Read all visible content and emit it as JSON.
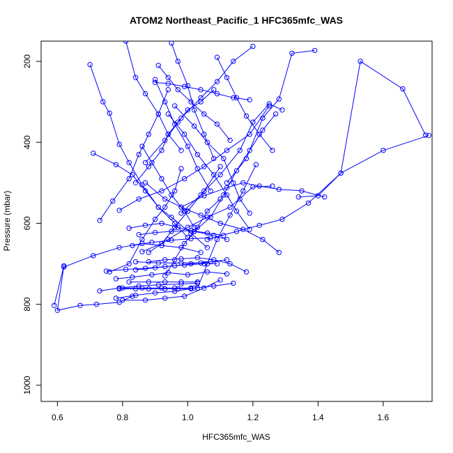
{
  "chart_data": {
    "type": "line",
    "title": "ATOM2 Northeast_Pacific_1 HFC365mfc_WAS",
    "xlabel": "HFC365mfc_WAS",
    "ylabel": "Pressure (mbar)",
    "xlim": [
      0.55,
      1.75
    ],
    "ylim": [
      1040,
      150
    ],
    "y_reversed": true,
    "grid": false,
    "x_ticks": [
      0.6,
      0.8,
      1.0,
      1.2,
      1.4,
      1.6
    ],
    "x_tick_labels": [
      "0.6",
      "0.8",
      "1.0",
      "1.2",
      "1.4",
      "1.6"
    ],
    "y_ticks": [
      200,
      400,
      600,
      800,
      1000
    ],
    "y_tick_labels": [
      "200",
      "400",
      "600",
      "800",
      "1000"
    ],
    "series_color": "#0000ff",
    "series": [
      {
        "x": [
          0.59,
          0.62,
          0.6,
          0.67,
          0.72,
          0.79,
          0.83
        ],
        "y": [
          803,
          705,
          815,
          803,
          800,
          795,
          780
        ]
      },
      {
        "x": [
          0.7,
          0.74,
          0.76,
          0.79,
          0.82,
          0.86,
          0.91,
          0.96,
          1.0
        ],
        "y": [
          208,
          300,
          328,
          405,
          450,
          505,
          560,
          600,
          635
        ]
      },
      {
        "x": [
          0.71,
          0.78,
          0.83,
          0.87,
          0.91,
          0.95,
          1.01,
          1.06
        ],
        "y": [
          427,
          455,
          480,
          520,
          560,
          585,
          625,
          660
        ]
      },
      {
        "x": [
          1.73,
          1.66,
          1.53,
          1.47,
          1.4,
          1.34
        ],
        "y": [
          382,
          268,
          200,
          476,
          532,
          535
        ]
      },
      {
        "x": [
          1.74,
          1.6,
          1.47,
          1.37,
          1.29,
          1.22,
          1.15,
          1.06
        ],
        "y": [
          383,
          420,
          476,
          550,
          590,
          605,
          620,
          640
        ]
      },
      {
        "x": [
          1.39,
          1.32,
          1.28,
          1.23,
          1.18,
          1.12
        ],
        "y": [
          173,
          180,
          293,
          340,
          440,
          500
        ]
      },
      {
        "x": [
          1.42,
          1.35,
          1.28,
          1.22,
          1.17,
          1.12,
          1.05,
          0.98
        ],
        "y": [
          535,
          520,
          516,
          508,
          500,
          512,
          532,
          560
        ]
      },
      {
        "x": [
          0.62,
          0.71,
          0.79,
          0.86,
          0.92,
          0.98,
          1.04
        ],
        "y": [
          708,
          680,
          660,
          650,
          655,
          660,
          672
        ]
      },
      {
        "x": [
          0.73,
          0.77,
          0.82,
          0.85,
          0.88,
          0.91,
          0.94
        ],
        "y": [
          593,
          545,
          490,
          430,
          380,
          330,
          270
        ]
      },
      {
        "x": [
          0.81,
          0.84,
          0.87,
          0.91,
          0.94,
          0.98
        ],
        "y": [
          150,
          240,
          280,
          330,
          380,
          420
        ]
      },
      {
        "x": [
          0.84,
          0.88,
          0.92,
          0.94,
          0.97,
          1.0,
          1.04,
          1.08
        ],
        "y": [
          500,
          460,
          420,
          380,
          350,
          320,
          300,
          270
        ]
      },
      {
        "x": [
          0.79,
          0.85,
          0.92,
          0.99,
          1.05,
          1.12,
          1.19,
          1.25
        ],
        "y": [
          568,
          540,
          520,
          490,
          460,
          420,
          380,
          310
        ]
      },
      {
        "x": [
          0.88,
          0.94,
          1.0,
          1.06,
          1.13,
          1.2,
          1.26
        ],
        "y": [
          672,
          640,
          610,
          585,
          560,
          510,
          508
        ]
      },
      {
        "x": [
          0.76,
          0.82,
          0.86,
          0.9,
          0.93,
          0.96,
          0.98
        ],
        "y": [
          720,
          700,
          640,
          590,
          560,
          520,
          465
        ]
      },
      {
        "x": [
          0.78,
          0.83,
          0.89,
          0.94,
          1.0,
          1.06,
          1.12
        ],
        "y": [
          737,
          733,
          727,
          722,
          727,
          720,
          725
        ]
      },
      {
        "x": [
          0.79,
          0.84,
          0.88,
          0.93,
          0.97,
          1.01
        ],
        "y": [
          762,
          762,
          762,
          762,
          762,
          762
        ]
      },
      {
        "x": [
          0.8,
          0.86,
          0.92,
          0.96,
          1.01
        ],
        "y": [
          760,
          760,
          760,
          760,
          760
        ]
      },
      {
        "x": [
          0.82,
          0.88,
          0.93,
          0.98,
          1.03
        ],
        "y": [
          745,
          745,
          745,
          745,
          745
        ]
      },
      {
        "x": [
          0.84,
          0.9,
          0.96,
          1.01,
          1.07,
          1.12
        ],
        "y": [
          715,
          710,
          705,
          700,
          695,
          690
        ]
      },
      {
        "x": [
          0.8,
          0.87,
          0.93,
          0.99,
          1.05,
          1.1
        ],
        "y": [
          790,
          790,
          785,
          780,
          760,
          740
        ]
      },
      {
        "x": [
          0.84,
          0.91,
          0.98,
          1.04,
          1.09
        ],
        "y": [
          695,
          698,
          698,
          698,
          700
        ]
      },
      {
        "x": [
          0.86,
          0.92,
          0.96,
          1.0,
          1.05,
          1.1
        ],
        "y": [
          670,
          650,
          610,
          570,
          520,
          460
        ]
      },
      {
        "x": [
          1.19,
          1.16,
          1.14,
          1.11,
          1.06,
          1.02,
          0.96
        ],
        "y": [
          575,
          540,
          500,
          440,
          400,
          360,
          310
        ]
      },
      {
        "x": [
          1.19,
          1.15,
          1.12,
          1.08,
          1.03,
          0.99,
          0.94
        ],
        "y": [
          615,
          570,
          530,
          480,
          430,
          380,
          330
        ]
      },
      {
        "x": [
          1.28,
          1.23,
          1.17,
          1.1,
          1.04,
          0.98,
          0.93,
          0.87
        ],
        "y": [
          672,
          640,
          615,
          600,
          580,
          560,
          540,
          500
        ]
      },
      {
        "x": [
          1.27,
          1.23,
          1.19,
          1.15,
          1.11,
          1.07,
          1.02
        ],
        "y": [
          330,
          370,
          420,
          470,
          530,
          585,
          620
        ]
      },
      {
        "x": [
          1.29,
          1.25,
          1.2,
          1.16,
          1.1,
          1.04,
          0.98
        ],
        "y": [
          320,
          305,
          350,
          420,
          480,
          530,
          575
        ]
      },
      {
        "x": [
          0.91,
          0.94,
          0.97,
          1.01,
          1.05,
          1.09,
          1.13
        ],
        "y": [
          210,
          240,
          270,
          300,
          330,
          355,
          395
        ]
      },
      {
        "x": [
          1.2,
          1.14,
          1.09,
          1.04,
          0.98,
          0.93,
          0.87
        ],
        "y": [
          163,
          200,
          250,
          290,
          340,
          395,
          450
        ]
      },
      {
        "x": [
          0.9,
          0.94,
          0.99,
          1.04,
          1.09,
          1.14,
          1.19
        ],
        "y": [
          252,
          255,
          262,
          270,
          280,
          290,
          295
        ]
      },
      {
        "x": [
          0.95,
          0.97,
          1.0,
          1.02,
          1.05,
          1.08
        ],
        "y": [
          155,
          200,
          260,
          320,
          380,
          440
        ]
      },
      {
        "x": [
          0.82,
          0.87,
          0.92,
          0.97,
          1.02,
          1.08,
          1.12
        ],
        "y": [
          612,
          605,
          600,
          610,
          620,
          630,
          640
        ]
      },
      {
        "x": [
          0.88,
          0.93,
          0.98,
          1.03,
          1.08,
          1.13,
          1.18
        ],
        "y": [
          695,
          690,
          688,
          685,
          690,
          700,
          720
        ]
      },
      {
        "x": [
          0.78,
          0.84,
          0.9,
          0.96,
          1.02,
          1.08,
          1.14
        ],
        "y": [
          785,
          778,
          772,
          768,
          760,
          755,
          748
        ]
      },
      {
        "x": [
          0.73,
          0.79,
          0.85,
          0.91,
          0.98,
          1.03
        ],
        "y": [
          767,
          760,
          755,
          752,
          750,
          748
        ]
      },
      {
        "x": [
          0.75,
          0.81,
          0.87,
          0.93,
          0.99,
          1.05
        ],
        "y": [
          718,
          714,
          711,
          707,
          703,
          700
        ]
      },
      {
        "x": [
          0.83,
          0.89,
          0.95,
          1.01,
          1.07
        ],
        "y": [
          655,
          647,
          642,
          638,
          636
        ]
      },
      {
        "x": [
          0.85,
          0.9,
          0.95,
          1.01,
          1.06,
          1.11
        ],
        "y": [
          628,
          623,
          620,
          618,
          624,
          630
        ]
      },
      {
        "x": [
          0.93,
          0.96,
          0.99,
          1.03,
          1.06,
          1.1
        ],
        "y": [
          730,
          690,
          650,
          610,
          570,
          540
        ]
      },
      {
        "x": [
          1.03,
          1.06,
          1.09,
          1.13,
          1.17,
          1.21
        ],
        "y": [
          760,
          700,
          640,
          580,
          520,
          455
        ]
      },
      {
        "x": [
          0.86,
          0.89,
          0.92,
          0.95,
          0.99,
          1.02
        ],
        "y": [
          410,
          450,
          490,
          530,
          570,
          610
        ]
      },
      {
        "x": [
          0.9,
          0.93,
          0.96,
          1.0,
          1.03,
          1.07
        ],
        "y": [
          245,
          300,
          355,
          410,
          465,
          520
        ]
      },
      {
        "x": [
          1.09,
          1.12,
          1.15,
          1.18,
          1.22,
          1.26
        ],
        "y": [
          190,
          240,
          290,
          335,
          380,
          420
        ]
      }
    ]
  }
}
